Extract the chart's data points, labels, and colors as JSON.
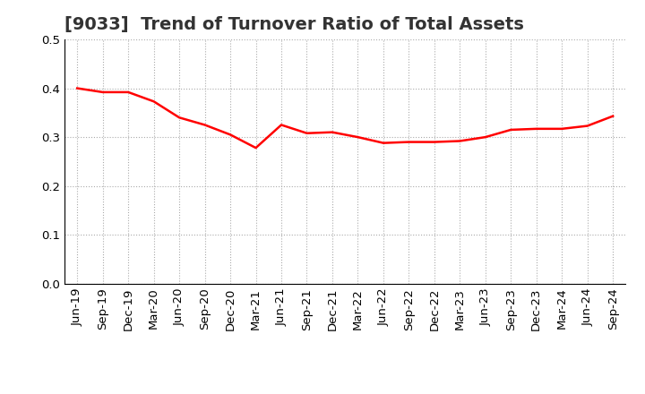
{
  "title": "[9033]  Trend of Turnover Ratio of Total Assets",
  "x_labels": [
    "Jun-19",
    "Sep-19",
    "Dec-19",
    "Mar-20",
    "Jun-20",
    "Sep-20",
    "Dec-20",
    "Mar-21",
    "Jun-21",
    "Sep-21",
    "Dec-21",
    "Mar-22",
    "Jun-22",
    "Sep-22",
    "Dec-22",
    "Mar-23",
    "Jun-23",
    "Sep-23",
    "Dec-23",
    "Mar-24",
    "Jun-24",
    "Sep-24"
  ],
  "values": [
    0.4,
    0.392,
    0.392,
    0.373,
    0.34,
    0.325,
    0.305,
    0.278,
    0.325,
    0.308,
    0.31,
    0.3,
    0.288,
    0.29,
    0.29,
    0.292,
    0.3,
    0.315,
    0.317,
    0.317,
    0.323,
    0.343
  ],
  "line_color": "#FF0000",
  "line_width": 1.8,
  "ylim": [
    0.0,
    0.5
  ],
  "yticks": [
    0.0,
    0.1,
    0.2,
    0.3,
    0.4,
    0.5
  ],
  "grid_color": "#aaaaaa",
  "bg_color": "#ffffff",
  "title_fontsize": 14,
  "title_color": "#333333",
  "tick_fontsize": 9.5
}
